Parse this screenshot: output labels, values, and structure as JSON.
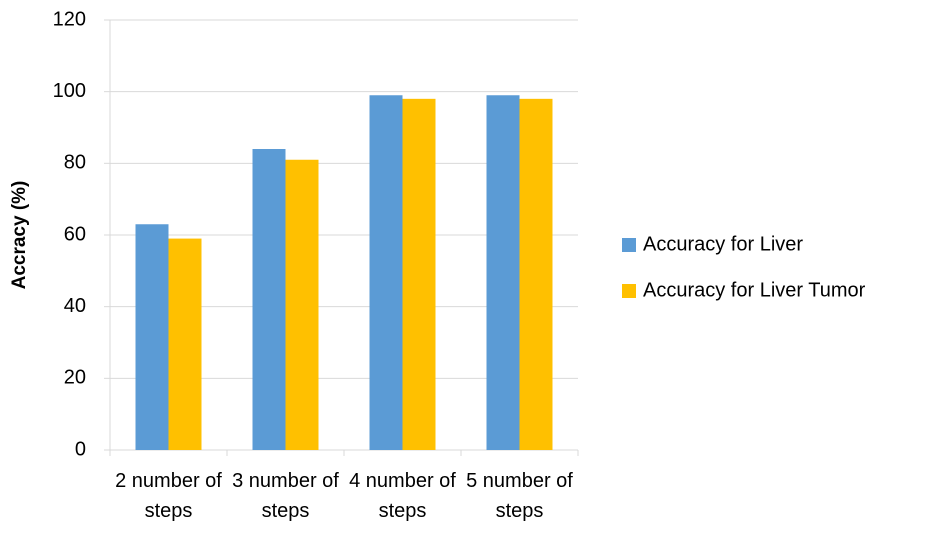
{
  "chart_data": {
    "type": "bar",
    "ylabel": "Accracy (%)",
    "categories": [
      "2 number of steps",
      "3 number of steps",
      "4 number of steps",
      "5 number of steps"
    ],
    "series": [
      {
        "name": "Accuracy for Liver",
        "color": "#5b9bd5",
        "values": [
          63,
          84,
          99,
          99
        ]
      },
      {
        "name": "Accuracy for Liver Tumor",
        "color": "#ffc000",
        "values": [
          59,
          81,
          98,
          98
        ]
      }
    ],
    "ylim": [
      0,
      120
    ],
    "yticks": [
      0,
      20,
      40,
      60,
      80,
      100,
      120
    ],
    "grid": true,
    "legend": "right"
  }
}
